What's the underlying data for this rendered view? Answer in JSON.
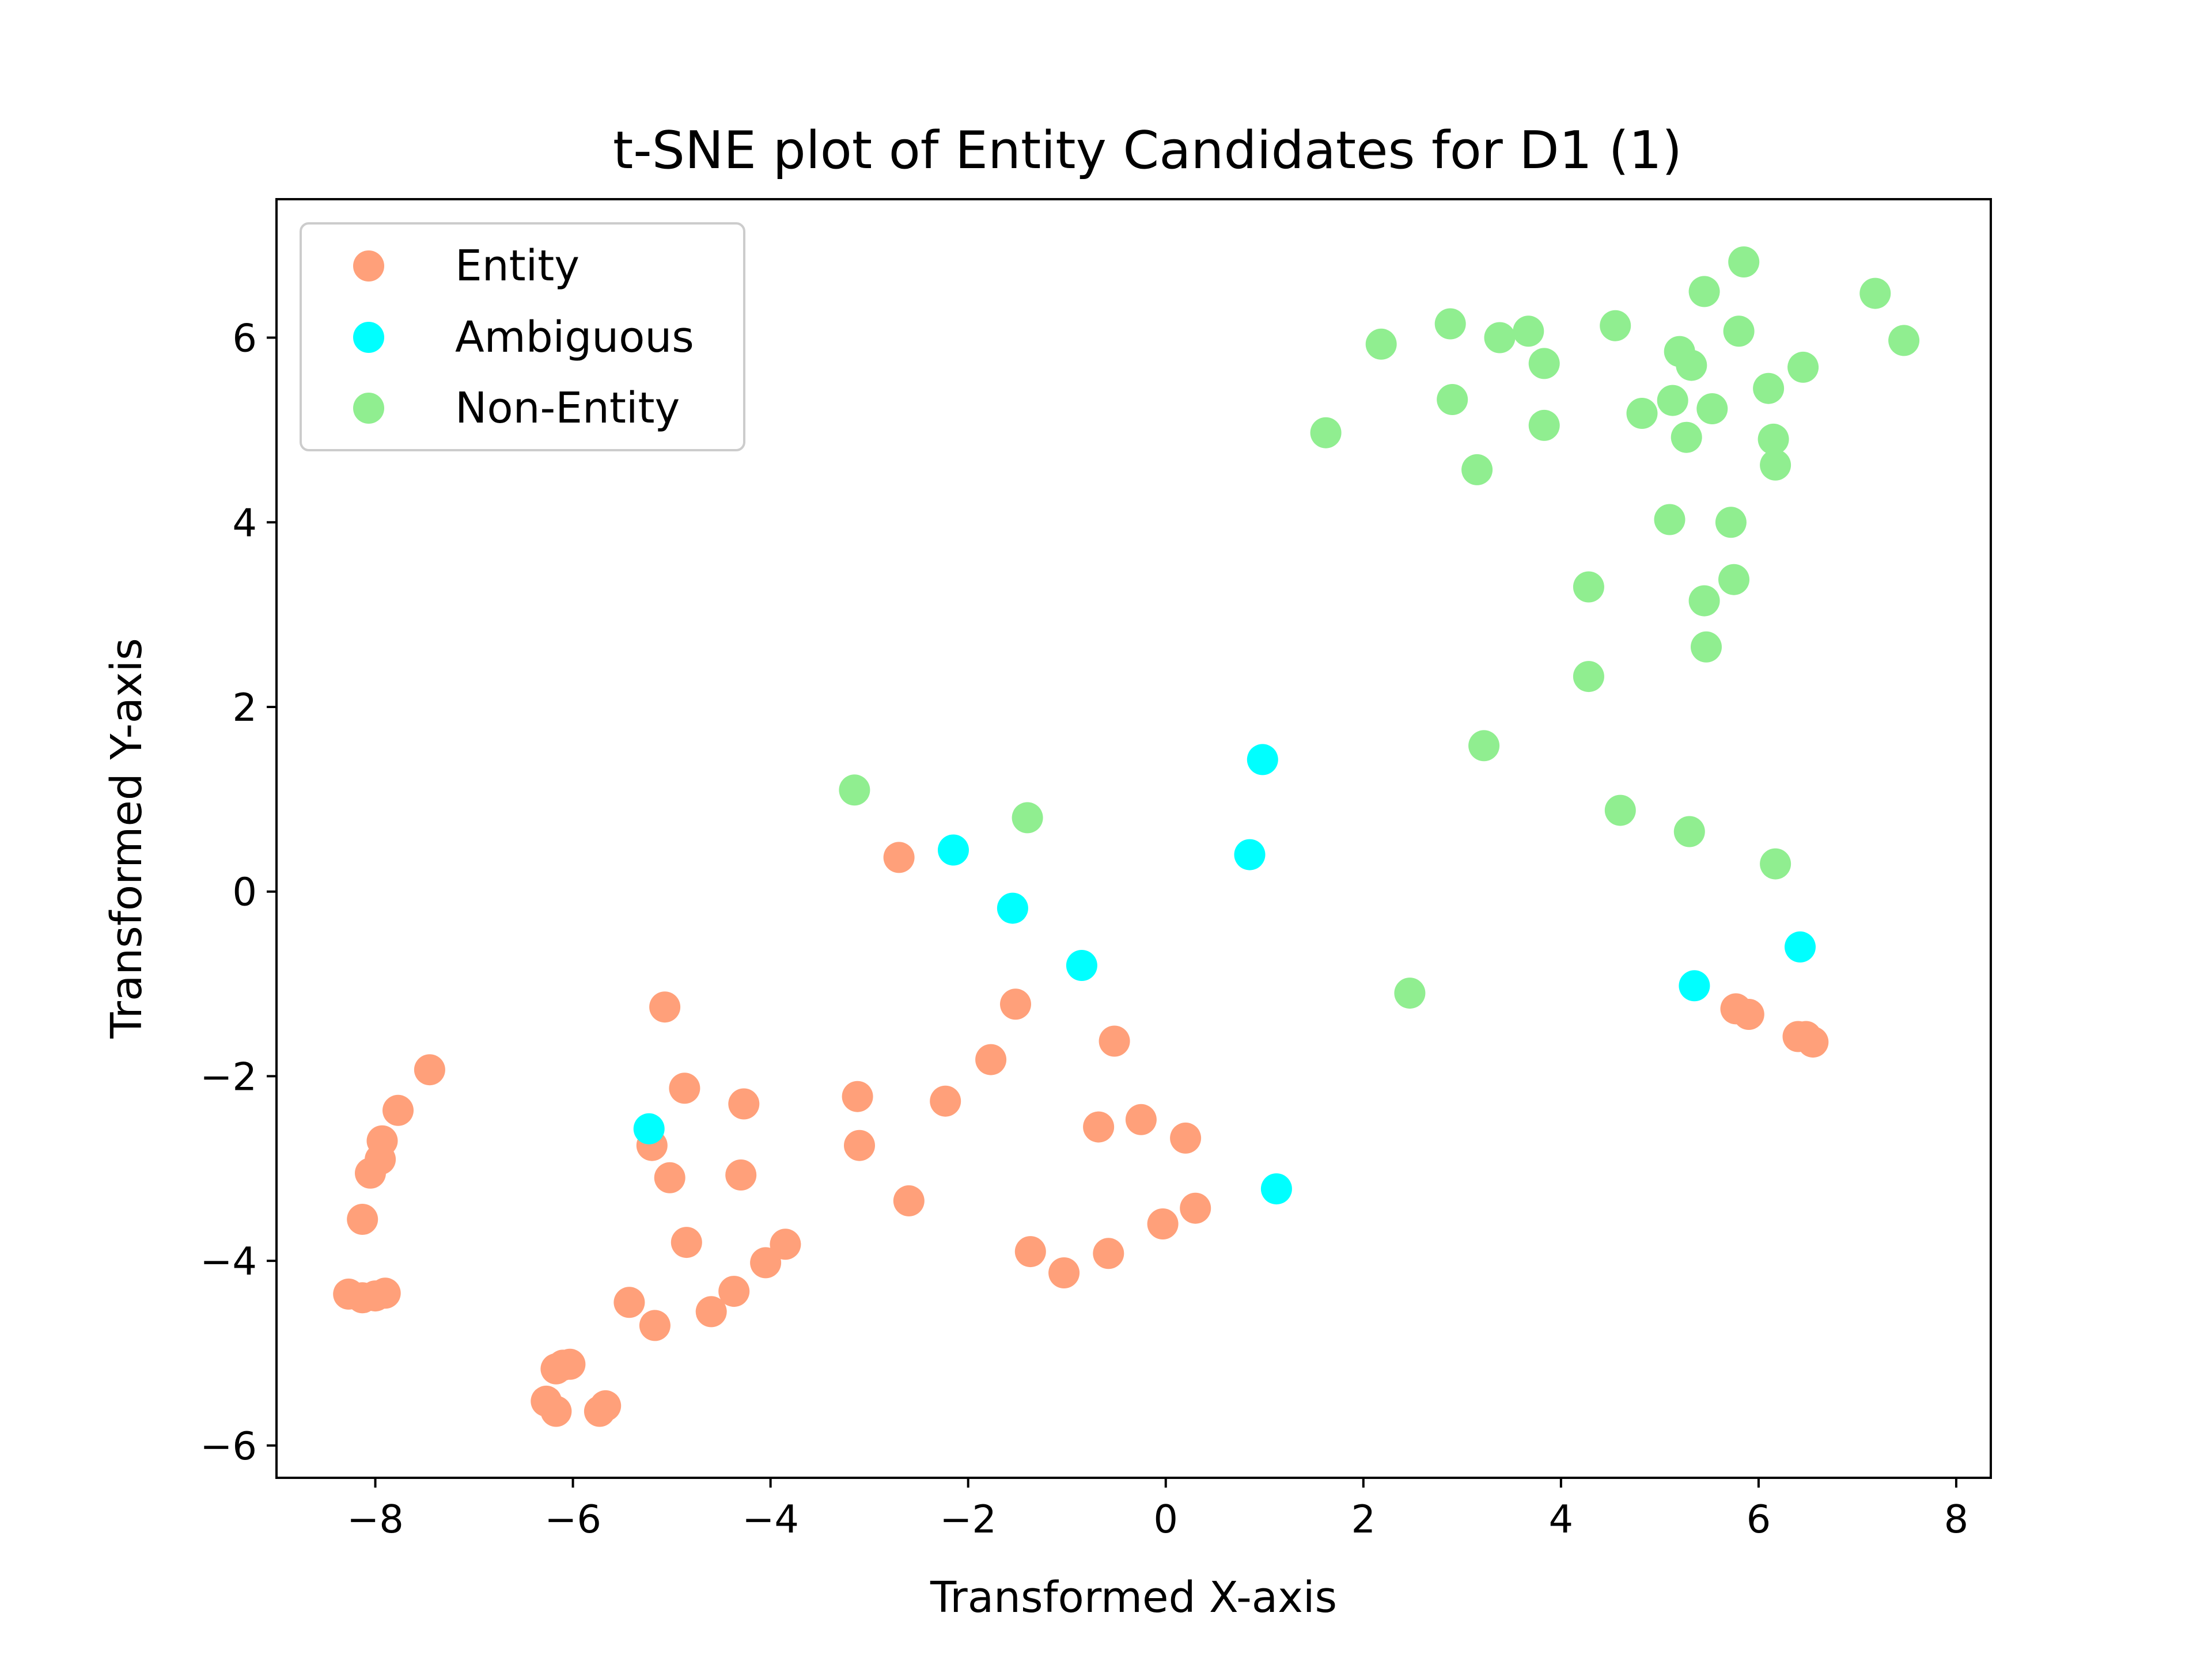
{
  "chart_data": {
    "type": "scatter",
    "title": "t-SNE plot of Entity Candidates for D1 (1)",
    "xlabel": "Transformed X-axis",
    "ylabel": "Transformed Y-axis",
    "xlim": [
      -9.0,
      8.35
    ],
    "ylim": [
      -6.35,
      7.5
    ],
    "xticks": [
      -8,
      -6,
      -4,
      -2,
      0,
      2,
      4,
      6,
      8
    ],
    "yticks": [
      -6,
      -4,
      -2,
      0,
      2,
      4,
      6
    ],
    "grid": false,
    "legend_position": "top-left",
    "series": [
      {
        "name": "Entity",
        "color": "#ffa07a",
        "points": [
          [
            -8.27,
            -4.36
          ],
          [
            -8.13,
            -4.4
          ],
          [
            -8.0,
            -4.38
          ],
          [
            -7.9,
            -4.35
          ],
          [
            -8.13,
            -3.55
          ],
          [
            -8.05,
            -3.05
          ],
          [
            -7.95,
            -2.9
          ],
          [
            -7.93,
            -2.7
          ],
          [
            -7.77,
            -2.37
          ],
          [
            -7.45,
            -1.93
          ],
          [
            -6.27,
            -5.52
          ],
          [
            -6.17,
            -5.63
          ],
          [
            -6.17,
            -5.17
          ],
          [
            -6.1,
            -5.13
          ],
          [
            -6.03,
            -5.12
          ],
          [
            -5.73,
            -5.63
          ],
          [
            -5.67,
            -5.57
          ],
          [
            -5.43,
            -4.45
          ],
          [
            -5.17,
            -4.7
          ],
          [
            -5.2,
            -2.75
          ],
          [
            -5.02,
            -3.1
          ],
          [
            -5.07,
            -1.25
          ],
          [
            -4.87,
            -2.13
          ],
          [
            -4.85,
            -3.8
          ],
          [
            -4.6,
            -4.55
          ],
          [
            -4.37,
            -4.33
          ],
          [
            -4.3,
            -3.07
          ],
          [
            -4.27,
            -2.3
          ],
          [
            -4.05,
            -4.02
          ],
          [
            -3.85,
            -3.82
          ],
          [
            -3.12,
            -2.22
          ],
          [
            -3.1,
            -2.75
          ],
          [
            -2.7,
            0.37
          ],
          [
            -2.6,
            -3.35
          ],
          [
            -2.23,
            -2.27
          ],
          [
            -1.77,
            -1.82
          ],
          [
            -1.52,
            -1.22
          ],
          [
            -1.37,
            -3.9
          ],
          [
            -1.03,
            -4.13
          ],
          [
            -0.68,
            -2.55
          ],
          [
            -0.58,
            -3.92
          ],
          [
            -0.52,
            -1.62
          ],
          [
            -0.25,
            -2.47
          ],
          [
            -0.03,
            -3.6
          ],
          [
            0.2,
            -2.67
          ],
          [
            0.3,
            -3.43
          ],
          [
            5.77,
            -1.27
          ],
          [
            5.9,
            -1.33
          ],
          [
            6.4,
            -1.57
          ],
          [
            6.48,
            -1.57
          ],
          [
            6.55,
            -1.63
          ]
        ]
      },
      {
        "name": "Ambiguous",
        "color": "#00ffff",
        "points": [
          [
            -5.23,
            -2.57
          ],
          [
            -2.15,
            0.45
          ],
          [
            -1.55,
            -0.18
          ],
          [
            -0.85,
            -0.8
          ],
          [
            0.85,
            0.4
          ],
          [
            0.98,
            1.43
          ],
          [
            1.12,
            -3.22
          ],
          [
            5.35,
            -1.02
          ],
          [
            6.42,
            -0.6
          ]
        ]
      },
      {
        "name": "Non-Entity",
        "color": "#90ee90",
        "points": [
          [
            -3.15,
            1.1
          ],
          [
            -1.4,
            0.8
          ],
          [
            1.62,
            4.97
          ],
          [
            2.18,
            5.93
          ],
          [
            2.47,
            -1.1
          ],
          [
            2.88,
            6.15
          ],
          [
            2.9,
            5.33
          ],
          [
            3.15,
            4.57
          ],
          [
            3.22,
            1.58
          ],
          [
            3.38,
            6.0
          ],
          [
            3.67,
            6.07
          ],
          [
            3.83,
            5.72
          ],
          [
            3.83,
            5.05
          ],
          [
            4.28,
            3.3
          ],
          [
            4.28,
            2.33
          ],
          [
            4.55,
            6.13
          ],
          [
            4.6,
            0.88
          ],
          [
            4.82,
            5.18
          ],
          [
            5.1,
            4.03
          ],
          [
            5.13,
            5.32
          ],
          [
            5.2,
            5.85
          ],
          [
            5.27,
            4.92
          ],
          [
            5.3,
            0.65
          ],
          [
            5.32,
            5.7
          ],
          [
            5.45,
            6.5
          ],
          [
            5.45,
            3.15
          ],
          [
            5.47,
            2.65
          ],
          [
            5.53,
            5.23
          ],
          [
            5.72,
            4.0
          ],
          [
            5.75,
            3.38
          ],
          [
            5.8,
            6.07
          ],
          [
            5.85,
            6.82
          ],
          [
            6.1,
            5.45
          ],
          [
            6.15,
            4.9
          ],
          [
            6.17,
            4.62
          ],
          [
            6.17,
            0.3
          ],
          [
            6.45,
            5.68
          ],
          [
            7.18,
            6.48
          ],
          [
            7.47,
            5.97
          ]
        ]
      }
    ]
  }
}
